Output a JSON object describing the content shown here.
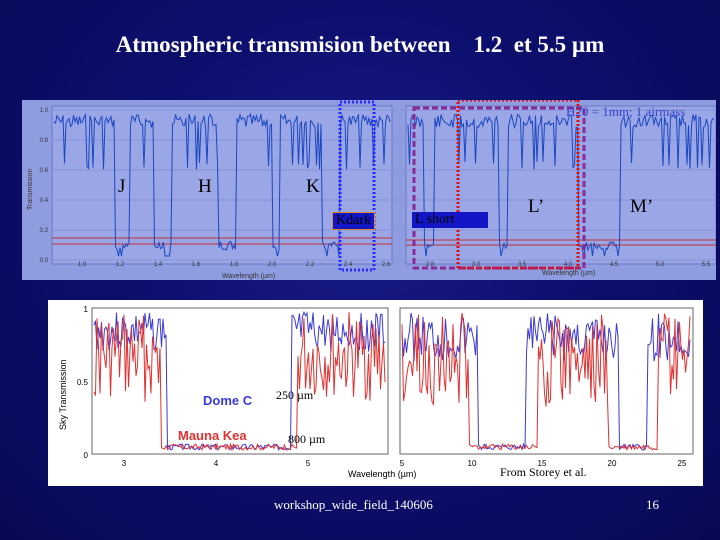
{
  "slide": {
    "title": "Atmospheric transmision between    1.2  et 5.5 µm",
    "footer": "workshop_wide_field_140606",
    "page_number": "16"
  },
  "top_plot": {
    "water_label": "H20 = 1mm; 1 airmass",
    "bands": [
      "J",
      "H",
      "K",
      "L’",
      "M’"
    ],
    "boxes": {
      "k_dark": "Kdark",
      "l_short": "L short"
    },
    "xlabel": "Wavelength (µm)",
    "ylabel": "Transmission",
    "x_ticks_left": [
      "1.0",
      "1.2",
      "1.4",
      "1.6",
      "1.8",
      "2.0",
      "2.2",
      "2.4",
      "2.6"
    ],
    "x_ticks_right": [
      "2.8",
      "3.0",
      "3.5",
      "4.0",
      "4.5",
      "5.0",
      "5.5"
    ],
    "y_ticks": [
      "1.0",
      "0.8",
      "0.6",
      "0.4",
      "0.2",
      "0.0"
    ],
    "highlight_colors": {
      "blue_box": "#2a2aff",
      "purple_box": "#8a2a9a",
      "red_box": "#e01010",
      "orange_box": "#e08a2a"
    }
  },
  "bottom_plot": {
    "ylabel": "Sky Transmission",
    "xlabel": "Wavelength (µm)",
    "legend": [
      {
        "name": "Dome C",
        "color": "#3a3ad8"
      },
      {
        "name": "Mauna Kea",
        "color": "#e03030"
      }
    ],
    "res_labels": [
      "250 µm",
      "800 µm"
    ],
    "left_x_ticks": [
      "3",
      "4",
      "5"
    ],
    "right_x_ticks": [
      "5",
      "10",
      "15",
      "20",
      "25"
    ],
    "y_ticks": [
      "1",
      "0.5",
      "0"
    ],
    "credit": "From Storey et al."
  }
}
